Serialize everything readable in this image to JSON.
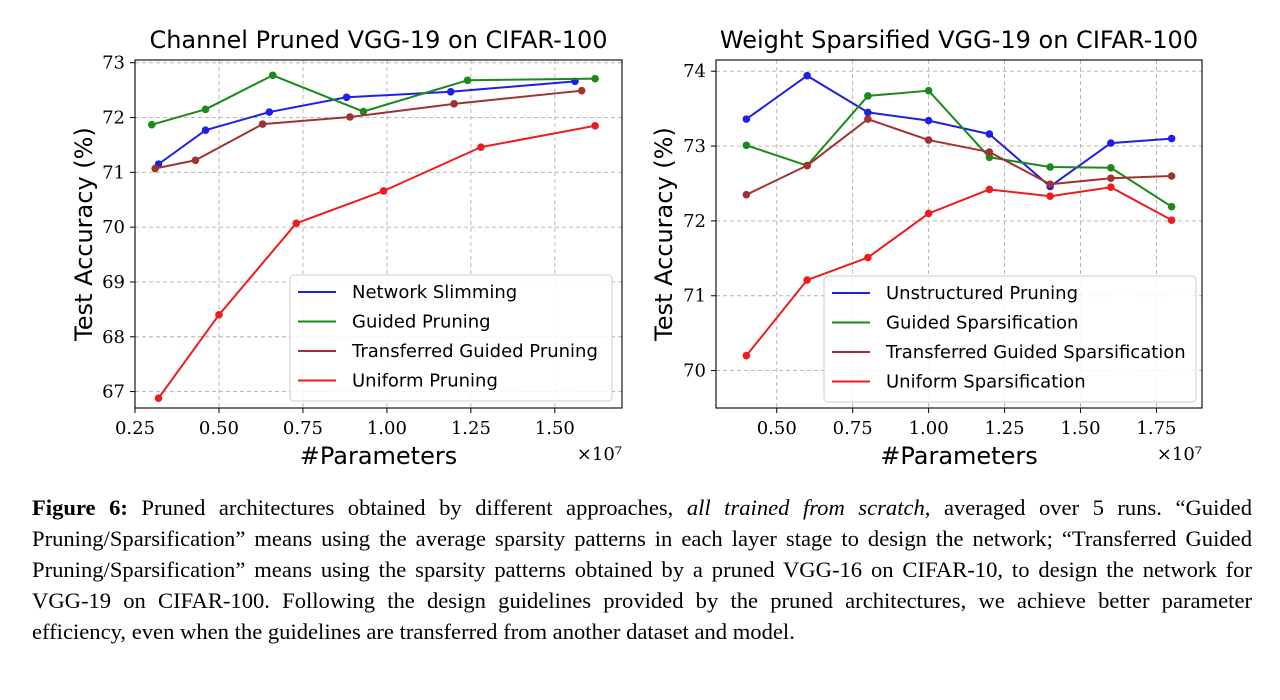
{
  "chart_data": [
    {
      "type": "line",
      "title": "Channel Pruned VGG-19 on CIFAR-100",
      "xlabel": "#Parameters",
      "ylabel": "Test Accuracy (%)",
      "x_multiplier": "×10⁷",
      "xlim": [
        0.25,
        1.7
      ],
      "ylim": [
        66.7,
        73.05
      ],
      "xticks": [
        0.25,
        0.5,
        0.75,
        1.0,
        1.25,
        1.5
      ],
      "xtick_labels": [
        "0.25",
        "0.50",
        "0.75",
        "1.00",
        "1.25",
        "1.50"
      ],
      "yticks": [
        67,
        68,
        69,
        70,
        71,
        72,
        73
      ],
      "ytick_labels": [
        "67",
        "68",
        "69",
        "70",
        "71",
        "72",
        "73"
      ],
      "grid": true,
      "legend_position": "lower-right",
      "series": [
        {
          "name": "Network Slimming",
          "color": "#1f1fe6",
          "x": [
            0.32,
            0.46,
            0.65,
            0.88,
            1.19,
            1.56
          ],
          "y": [
            71.15,
            71.77,
            72.1,
            72.37,
            72.47,
            72.66
          ]
        },
        {
          "name": "Guided Pruning",
          "color": "#1a8a1a",
          "x": [
            0.3,
            0.46,
            0.66,
            0.93,
            1.24,
            1.62
          ],
          "y": [
            71.87,
            72.15,
            72.77,
            72.11,
            72.68,
            72.71
          ]
        },
        {
          "name": "Transferred Guided Pruning",
          "color": "#a03232",
          "x": [
            0.31,
            0.43,
            0.63,
            0.89,
            1.2,
            1.58
          ],
          "y": [
            71.07,
            71.22,
            71.88,
            72.01,
            72.25,
            72.49
          ]
        },
        {
          "name": "Uniform Pruning",
          "color": "#ee1c1c",
          "x": [
            0.32,
            0.5,
            0.73,
            0.99,
            1.28,
            1.62
          ],
          "y": [
            66.88,
            68.4,
            70.07,
            70.66,
            71.46,
            71.85
          ]
        }
      ]
    },
    {
      "type": "line",
      "title": "Weight Sparsified VGG-19 on CIFAR-100",
      "xlabel": "#Parameters",
      "ylabel": "Test Accuracy (%)",
      "x_multiplier": "×10⁷",
      "xlim": [
        0.3,
        1.9
      ],
      "ylim": [
        69.5,
        74.15
      ],
      "xticks": [
        0.5,
        0.75,
        1.0,
        1.25,
        1.5,
        1.75
      ],
      "xtick_labels": [
        "0.50",
        "0.75",
        "1.00",
        "1.25",
        "1.50",
        "1.75"
      ],
      "yticks": [
        70,
        71,
        72,
        73,
        74
      ],
      "ytick_labels": [
        "70",
        "71",
        "72",
        "73",
        "74"
      ],
      "grid": true,
      "legend_position": "lower-right",
      "series": [
        {
          "name": "Unstructured Pruning",
          "color": "#1f1fe6",
          "x": [
            0.4,
            0.6,
            0.8,
            1.0,
            1.2,
            1.4,
            1.6,
            1.8
          ],
          "y": [
            73.36,
            73.94,
            73.45,
            73.34,
            73.16,
            72.46,
            73.04,
            73.1
          ]
        },
        {
          "name": "Guided Sparsification",
          "color": "#1a8a1a",
          "x": [
            0.4,
            0.6,
            0.8,
            1.0,
            1.2,
            1.4,
            1.6,
            1.8
          ],
          "y": [
            73.01,
            72.74,
            73.67,
            73.74,
            72.85,
            72.72,
            72.71,
            72.19
          ]
        },
        {
          "name": "Transferred Guided Sparsification",
          "color": "#a03232",
          "x": [
            0.4,
            0.6,
            0.8,
            1.0,
            1.2,
            1.4,
            1.6,
            1.8
          ],
          "y": [
            72.35,
            72.74,
            73.36,
            73.08,
            72.92,
            72.49,
            72.57,
            72.6
          ]
        },
        {
          "name": "Uniform Sparsification",
          "color": "#ee1c1c",
          "x": [
            0.4,
            0.6,
            0.8,
            1.0,
            1.2,
            1.4,
            1.6,
            1.8
          ],
          "y": [
            70.2,
            71.21,
            71.51,
            72.1,
            72.42,
            72.33,
            72.45,
            72.01
          ]
        }
      ]
    }
  ],
  "caption": {
    "figure_label": "Figure 6:",
    "text_1": " Pruned architectures obtained by different approaches, ",
    "italic": "all trained from scratch",
    "text_2": ", averaged over 5 runs. “Guided Pruning/Sparsification” means using the average sparsity patterns in each layer stage to design the network; “Transferred Guided Pruning/Sparsification” means using the sparsity patterns obtained by a pruned VGG-16 on CIFAR-10, to design the network for VGG-19 on CIFAR-100. Following the design guidelines provided by the pruned architectures, we achieve better parameter efficiency, even when the guidelines are transferred from another dataset and model."
  }
}
